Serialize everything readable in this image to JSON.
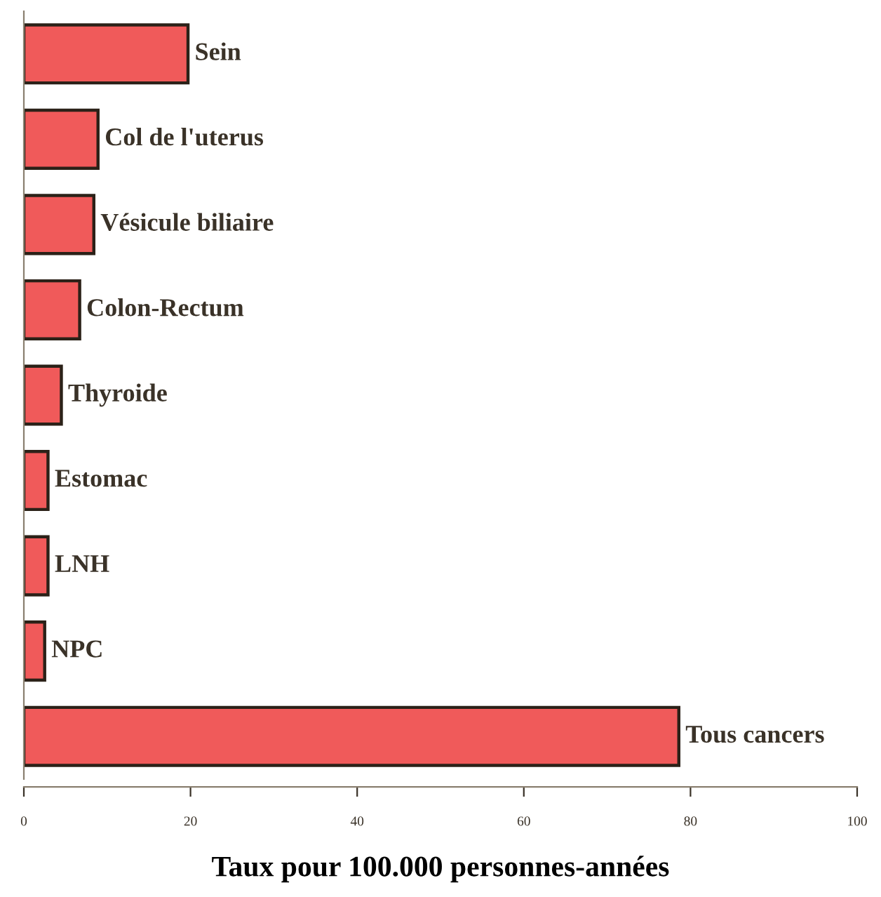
{
  "chart_data": {
    "type": "bar",
    "orientation": "horizontal",
    "xlabel": "Taux pour 100.000 personnes-années",
    "categories": [
      "Sein",
      "Col de l'uterus",
      "Vésicule biliaire",
      "Colon-Rectum",
      "Thyroide",
      "Estomac",
      "LNH",
      "NPC",
      "Tous cancers"
    ],
    "values": [
      19.7,
      8.9,
      8.4,
      6.7,
      4.5,
      2.9,
      2.9,
      2.5,
      78.6
    ],
    "color": "#f05a5a",
    "xlim": [
      0,
      100
    ],
    "xticks": [
      0,
      20,
      40,
      60,
      80,
      100
    ],
    "grid": false
  }
}
